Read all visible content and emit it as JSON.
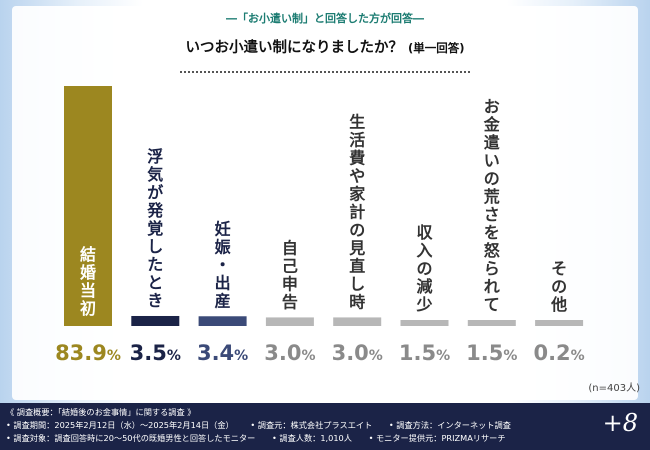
{
  "header": {
    "subtitle": "―「お小遣い制」と回答した方が回答―",
    "title_main": "いつお小遣い制になりましたか？",
    "title_note": "(単一回答)"
  },
  "chart_data": {
    "type": "bar",
    "title": "いつお小遣い制になりましたか？(単一回答)",
    "unit": "%",
    "categories": [
      "結婚当初",
      "浮気が発覚したとき",
      "妊娠・出産",
      "自己申告",
      "生活費や家計の見直し時",
      "収入の減少",
      "お金遣いの荒さを怒られて",
      "その他"
    ],
    "values": [
      83.9,
      3.5,
      3.4,
      3.0,
      3.0,
      1.5,
      1.5,
      0.2
    ],
    "value_labels": [
      "83.9",
      "3.5",
      "3.4",
      "3.0",
      "3.0",
      "1.5",
      "1.5",
      "0.2"
    ],
    "ylim": [
      0,
      100
    ],
    "colors": [
      "#9c8720",
      "#1b2347",
      "#3b4a78",
      "#b7b7b7",
      "#b7b7b7",
      "#b7b7b7",
      "#b7b7b7",
      "#b7b7b7"
    ],
    "label_colors": [
      "#9c8720",
      "#1b2347",
      "#3b4a78",
      "#8a8a8a",
      "#8a8a8a",
      "#8a8a8a",
      "#8a8a8a",
      "#8a8a8a"
    ],
    "inbar_text_color": "#ffffff"
  },
  "sample_size": "(n=403人)",
  "footer": {
    "heading": "《 調査概要：「結婚後のお金事情」に関する調査 》",
    "period": "• 調査期間：2025年2月12日（水）～2025年2月14日（金）",
    "organizer": "• 調査元：株式会社プラスエイト",
    "method": "• 調査方法：インターネット調査",
    "target": "• 調査対象：調査回答時に20〜50代の既婚男性と回答したモニター",
    "count": "• 調査人数：1,010人",
    "provider": "• モニター提供元：PRIZMAリサーチ"
  },
  "logo": "+8"
}
